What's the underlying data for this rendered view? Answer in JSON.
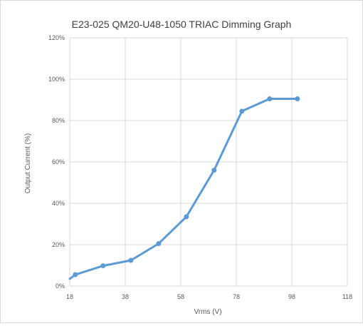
{
  "chart_data": {
    "type": "line",
    "title": "E23-025 QM20-U48-1050 TRIAC Dimming Graph",
    "xlabel": "Vrms (V)",
    "ylabel": "Output Current (%)",
    "xlim": [
      18,
      118
    ],
    "ylim": [
      0,
      1.2
    ],
    "x_ticks": [
      "18",
      "38",
      "58",
      "78",
      "98",
      "118"
    ],
    "x_tick_values": [
      18,
      38,
      58,
      78,
      98,
      118
    ],
    "y_ticks": [
      "0%",
      "20%",
      "40%",
      "60%",
      "80%",
      "100%",
      "120%"
    ],
    "y_tick_values": [
      0,
      0.2,
      0.4,
      0.6,
      0.8,
      1.0,
      1.2
    ],
    "grid": true,
    "legend": "none",
    "series": [
      {
        "color": "#5b9bd5",
        "x": [
          18,
          20,
          30,
          40,
          50,
          60,
          70,
          80,
          90,
          100
        ],
        "y": [
          0.035,
          0.055,
          0.098,
          0.124,
          0.205,
          0.335,
          0.56,
          0.845,
          0.905,
          0.905
        ]
      }
    ]
  }
}
